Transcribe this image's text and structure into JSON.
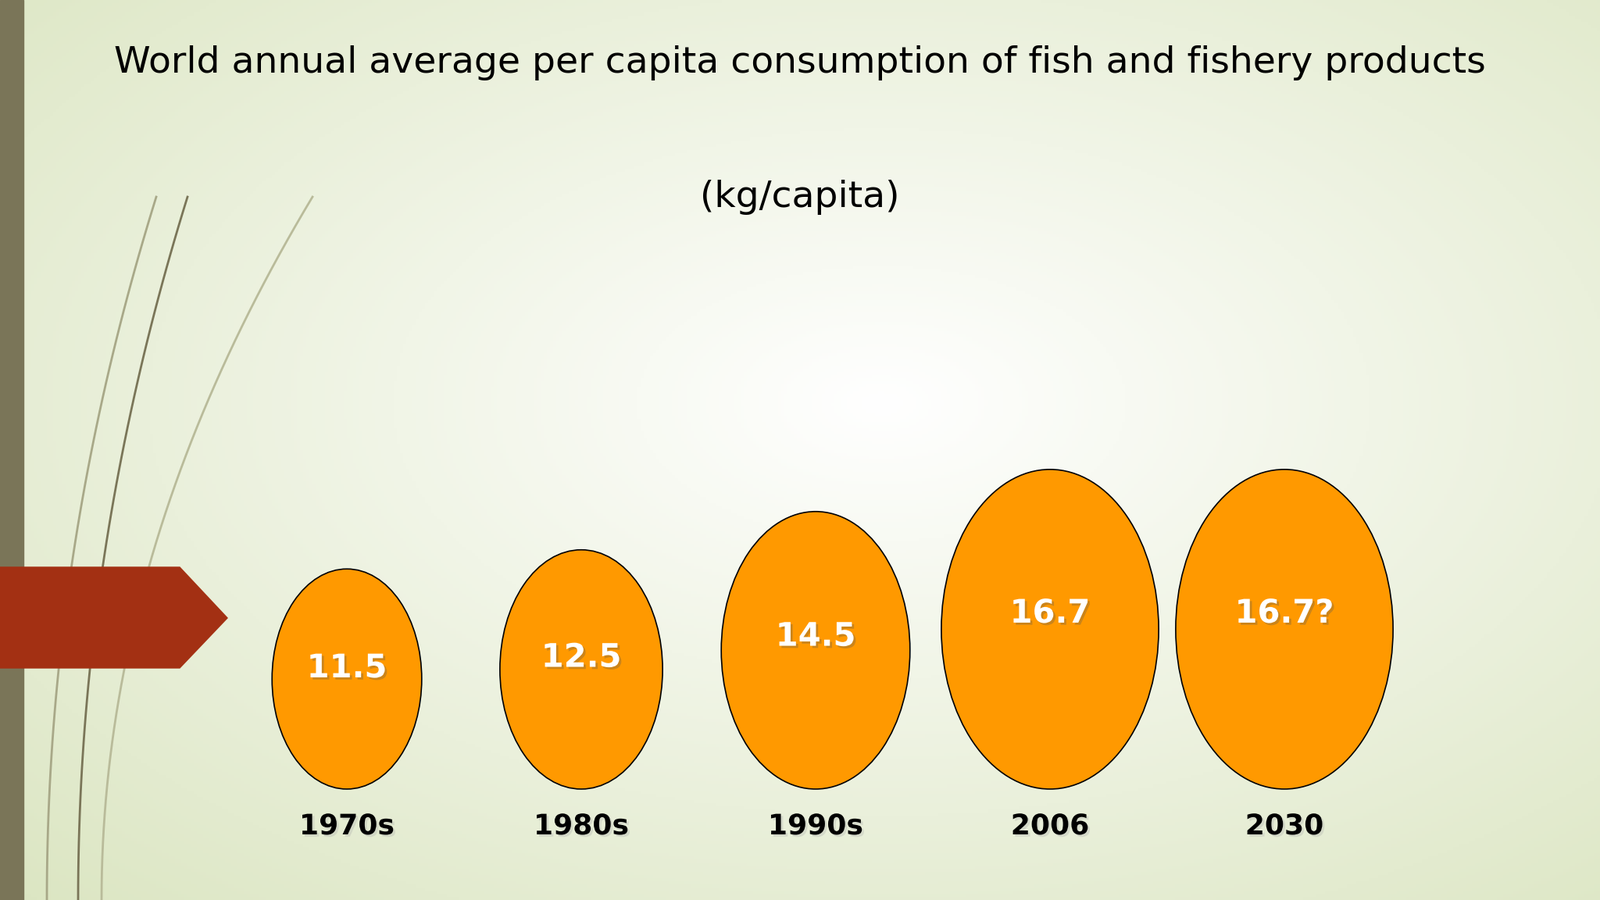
{
  "chart_data": {
    "type": "bubble",
    "title": "World annual average per capita consumption of fish and fishery products",
    "subtitle": "(kg/capita)",
    "categories": [
      "1970s",
      "1980s",
      "1990s",
      "2006",
      "2030"
    ],
    "values": [
      11.5,
      12.5,
      14.5,
      16.7,
      16.7
    ],
    "value_labels": [
      "11.5",
      "12.5",
      "14.5",
      "16.7",
      "16.7?"
    ],
    "color": "#ff9900",
    "data_labels": true,
    "tick_labels": false
  }
}
